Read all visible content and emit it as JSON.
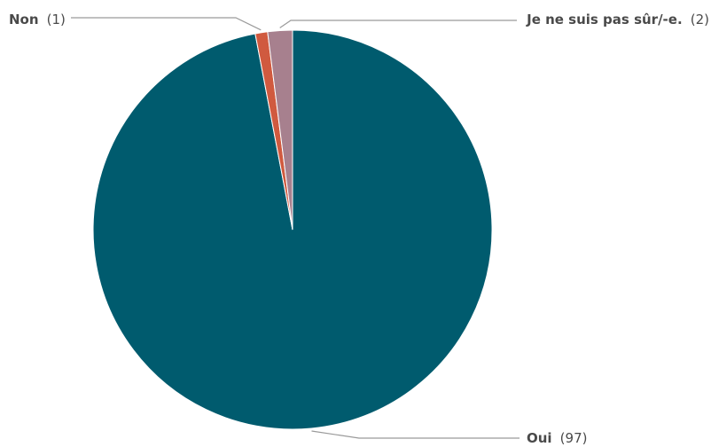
{
  "chart_data": {
    "type": "pie",
    "title": "",
    "slices": [
      {
        "label": "Oui",
        "value": 97,
        "count_text": "(97)",
        "color": "#005b6e"
      },
      {
        "label": "Non",
        "value": 1,
        "count_text": "(1)",
        "color": "#d05a3f"
      },
      {
        "label": "Je ne suis pas sûr/-e.",
        "value": 2,
        "count_text": "(2)",
        "color": "#a7808e"
      }
    ],
    "legend": "none",
    "leader_line_color": "#9a9a9a",
    "slice_border_color": "#ffffff"
  }
}
